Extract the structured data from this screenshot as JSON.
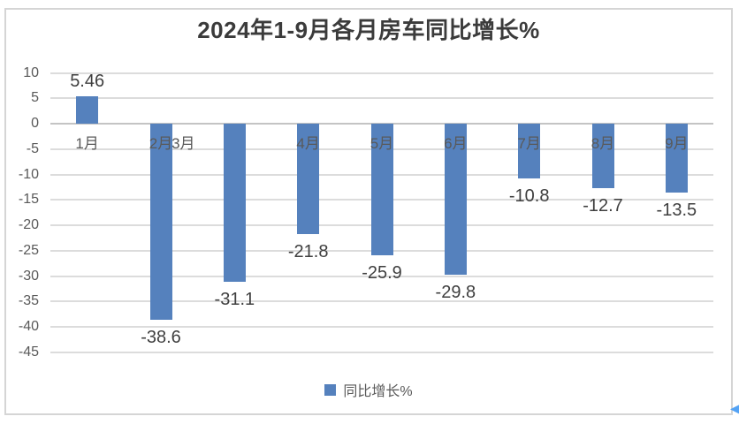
{
  "chart_data": {
    "type": "bar",
    "title": "2024年1-9月各月房车同比增长%",
    "categories": [
      "1月",
      "2月",
      "3月",
      "4月",
      "5月",
      "6月",
      "7月",
      "8月",
      "9月"
    ],
    "values": [
      5.46,
      -38.6,
      -31.1,
      -21.8,
      -25.9,
      -29.8,
      -10.8,
      -12.7,
      -13.5
    ],
    "data_labels": [
      "5.46",
      "-38.6",
      "-31.1",
      "-21.8",
      "-25.9",
      "-29.8",
      "-10.8",
      "-12.7",
      "-13.5"
    ],
    "series_name": "同比增长%",
    "xlabel": "",
    "ylabel": "",
    "ylim": [
      -45,
      10
    ],
    "yticks": [
      10,
      5,
      0,
      -5,
      -10,
      -15,
      -20,
      -25,
      -30,
      -35,
      -40,
      -45
    ],
    "grid": true,
    "legend_position": "bottom-center",
    "data_label_position": "outside-end",
    "layout": {
      "category_label_row": "below-zero-axis",
      "category_label_x_shift": [
        0,
        0,
        -58,
        0,
        0,
        0,
        0,
        0,
        0
      ]
    }
  },
  "icons": {
    "legend_marker": "square",
    "scroll_arrow": "◀"
  },
  "colors": {
    "background": "#ffffff",
    "bar": "#5581bd",
    "title": "#3b3b3b",
    "data_label": "#3f3f3f",
    "axis_label": "#595959",
    "legend_text": "#595959",
    "gridline": "#dcdcdc",
    "zero_line": "#c4c4c4",
    "frame_border": "#d5d5d5",
    "scroll_arrow": "#54a3f5"
  }
}
